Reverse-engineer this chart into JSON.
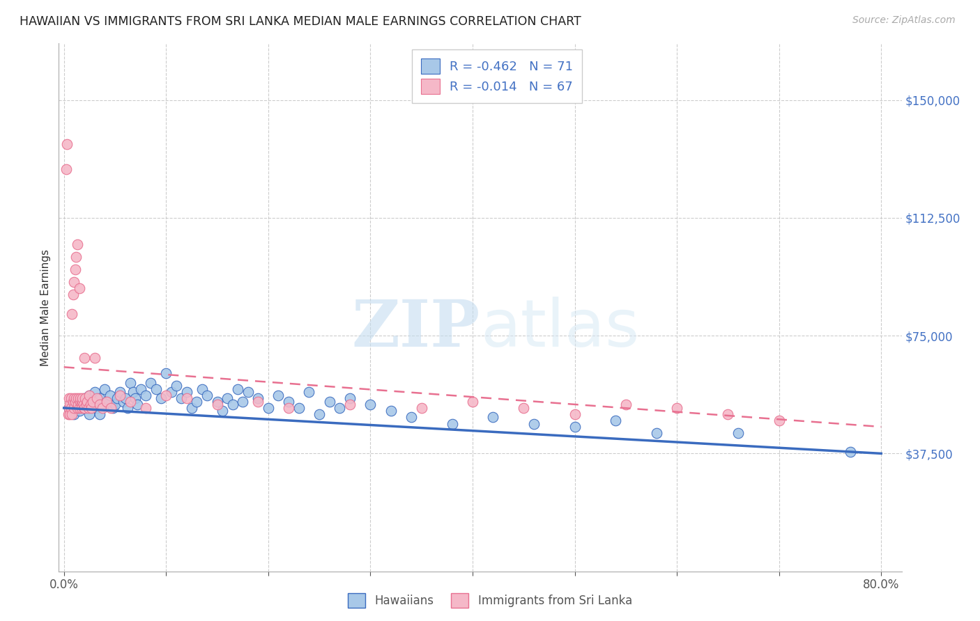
{
  "title": "HAWAIIAN VS IMMIGRANTS FROM SRI LANKA MEDIAN MALE EARNINGS CORRELATION CHART",
  "source": "Source: ZipAtlas.com",
  "ylabel": "Median Male Earnings",
  "right_ytick_labels": [
    "$150,000",
    "$112,500",
    "$75,000",
    "$37,500"
  ],
  "right_ytick_values": [
    150000,
    112500,
    75000,
    37500
  ],
  "xlim": [
    -0.005,
    0.82
  ],
  "ylim": [
    0,
    168000
  ],
  "blue_color": "#a8c8e8",
  "blue_line_color": "#3a6bbf",
  "pink_color": "#f5b8c8",
  "pink_line_color": "#e87090",
  "R_blue": -0.462,
  "N_blue": 71,
  "R_pink": -0.014,
  "N_pink": 67,
  "blue_x": [
    0.005,
    0.01,
    0.012,
    0.015,
    0.018,
    0.02,
    0.022,
    0.025,
    0.025,
    0.028,
    0.03,
    0.032,
    0.035,
    0.035,
    0.038,
    0.04,
    0.042,
    0.045,
    0.048,
    0.05,
    0.052,
    0.055,
    0.058,
    0.06,
    0.062,
    0.065,
    0.068,
    0.07,
    0.072,
    0.075,
    0.08,
    0.085,
    0.09,
    0.095,
    0.1,
    0.105,
    0.11,
    0.115,
    0.12,
    0.125,
    0.13,
    0.135,
    0.14,
    0.15,
    0.155,
    0.16,
    0.165,
    0.17,
    0.175,
    0.18,
    0.19,
    0.2,
    0.21,
    0.22,
    0.23,
    0.24,
    0.25,
    0.26,
    0.27,
    0.28,
    0.3,
    0.32,
    0.34,
    0.38,
    0.42,
    0.46,
    0.5,
    0.54,
    0.58,
    0.66,
    0.77
  ],
  "blue_y": [
    52000,
    50000,
    54000,
    51000,
    53000,
    55000,
    52000,
    56000,
    50000,
    54000,
    57000,
    52000,
    55000,
    50000,
    53000,
    58000,
    54000,
    56000,
    52000,
    53000,
    55000,
    57000,
    54000,
    55000,
    52000,
    60000,
    57000,
    55000,
    53000,
    58000,
    56000,
    60000,
    58000,
    55000,
    63000,
    57000,
    59000,
    55000,
    57000,
    52000,
    54000,
    58000,
    56000,
    54000,
    51000,
    55000,
    53000,
    58000,
    54000,
    57000,
    55000,
    52000,
    56000,
    54000,
    52000,
    57000,
    50000,
    54000,
    52000,
    55000,
    53000,
    51000,
    49000,
    47000,
    49000,
    47000,
    46000,
    48000,
    44000,
    44000,
    38000
  ],
  "pink_x": [
    0.002,
    0.003,
    0.004,
    0.005,
    0.005,
    0.006,
    0.006,
    0.007,
    0.007,
    0.008,
    0.008,
    0.009,
    0.009,
    0.01,
    0.01,
    0.01,
    0.011,
    0.011,
    0.012,
    0.012,
    0.013,
    0.013,
    0.014,
    0.014,
    0.015,
    0.015,
    0.016,
    0.016,
    0.017,
    0.017,
    0.018,
    0.018,
    0.019,
    0.019,
    0.02,
    0.02,
    0.021,
    0.022,
    0.023,
    0.024,
    0.025,
    0.026,
    0.027,
    0.028,
    0.03,
    0.032,
    0.035,
    0.038,
    0.042,
    0.046,
    0.055,
    0.065,
    0.08,
    0.1,
    0.12,
    0.15,
    0.19,
    0.22,
    0.28,
    0.35,
    0.4,
    0.45,
    0.5,
    0.55,
    0.6,
    0.65,
    0.7
  ],
  "pink_y": [
    128000,
    136000,
    50000,
    52000,
    55000,
    50000,
    53000,
    52000,
    55000,
    50000,
    82000,
    88000,
    54000,
    52000,
    92000,
    55000,
    96000,
    54000,
    100000,
    55000,
    104000,
    52000,
    53000,
    55000,
    90000,
    52000,
    54000,
    55000,
    53000,
    52000,
    54000,
    55000,
    52000,
    53000,
    68000,
    52000,
    55000,
    53000,
    54000,
    52000,
    56000,
    53000,
    52000,
    54000,
    68000,
    55000,
    53000,
    52000,
    54000,
    52000,
    56000,
    54000,
    52000,
    56000,
    55000,
    53000,
    54000,
    52000,
    53000,
    52000,
    54000,
    52000,
    50000,
    53000,
    52000,
    50000,
    48000
  ]
}
